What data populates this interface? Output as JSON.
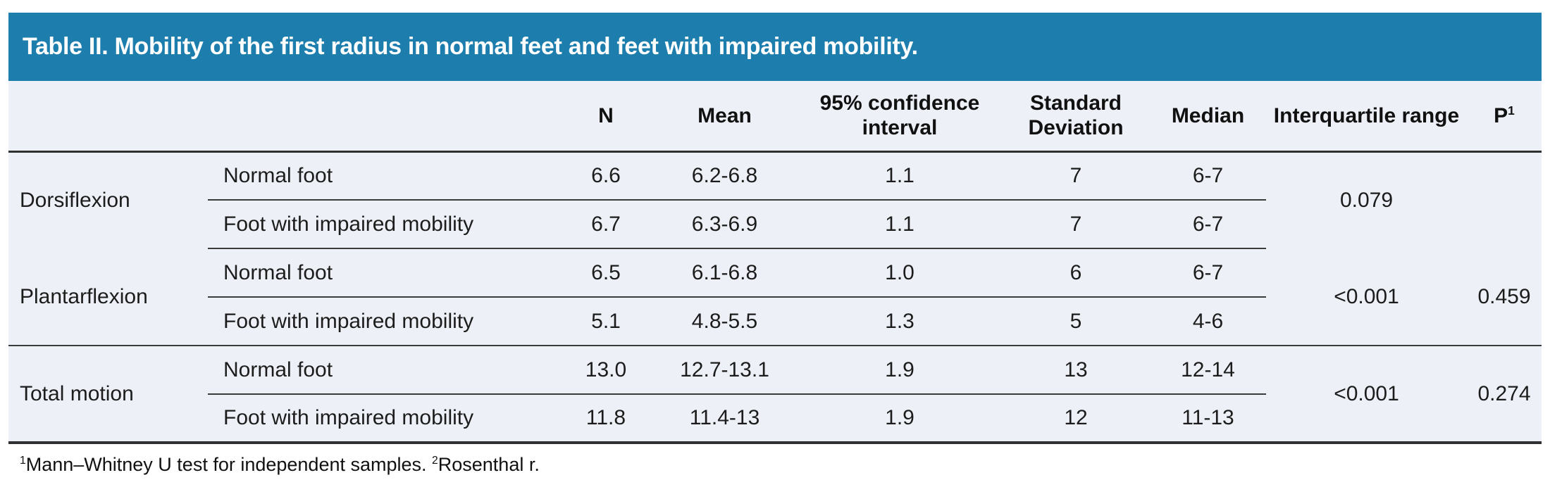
{
  "accent_color": "#1d7eae",
  "table_bg_color": "#edf1f7",
  "title": "Table II. Mobility of the first radius in normal feet and feet with impaired mobility.",
  "columns": [
    {
      "label": "N"
    },
    {
      "label": "Mean"
    },
    {
      "label": "95% confidence interval"
    },
    {
      "label": "Standard Deviation"
    },
    {
      "label": "Median"
    },
    {
      "label": "Interquartile range"
    },
    {
      "label": "P",
      "sup": "1"
    }
  ],
  "groups": [
    {
      "label": "Dorsiflexion",
      "rows": [
        {
          "foot": "Normal foot",
          "n": "6.6",
          "mean": "6.2-6.8",
          "ci": "1.1",
          "sd": "7",
          "median": "6-7"
        },
        {
          "foot": "Foot with impaired mobility",
          "n": "6.7",
          "mean": "6.3-6.9",
          "ci": "1.1",
          "sd": "7",
          "median": "6-7"
        }
      ],
      "iqr": "0.079",
      "p": ""
    },
    {
      "label": "Plantarflexion",
      "rows": [
        {
          "foot": "Normal foot",
          "n": "6.5",
          "mean": "6.1-6.8",
          "ci": "1.0",
          "sd": "6",
          "median": "6-7"
        },
        {
          "foot": "Foot with impaired mobility",
          "n": "5.1",
          "mean": "4.8-5.5",
          "ci": "1.3",
          "sd": "5",
          "median": "4-6"
        }
      ],
      "iqr": "<0.001",
      "p": "0.459"
    },
    {
      "label": "Total motion",
      "rows": [
        {
          "foot": "Normal foot",
          "n": "13.0",
          "mean": "12.7-13.1",
          "ci": "1.9",
          "sd": "13",
          "median": "12-14"
        },
        {
          "foot": "Foot with impaired mobility",
          "n": "11.8",
          "mean": "11.4-13",
          "ci": "1.9",
          "sd": "12",
          "median": "11-13"
        }
      ],
      "iqr": "<0.001",
      "p": "0.274"
    }
  ],
  "footnote": {
    "sup1": "1",
    "text1": "Mann–Whitney U test for independent samples. ",
    "sup2": "2",
    "text2": "Rosenthal r."
  }
}
